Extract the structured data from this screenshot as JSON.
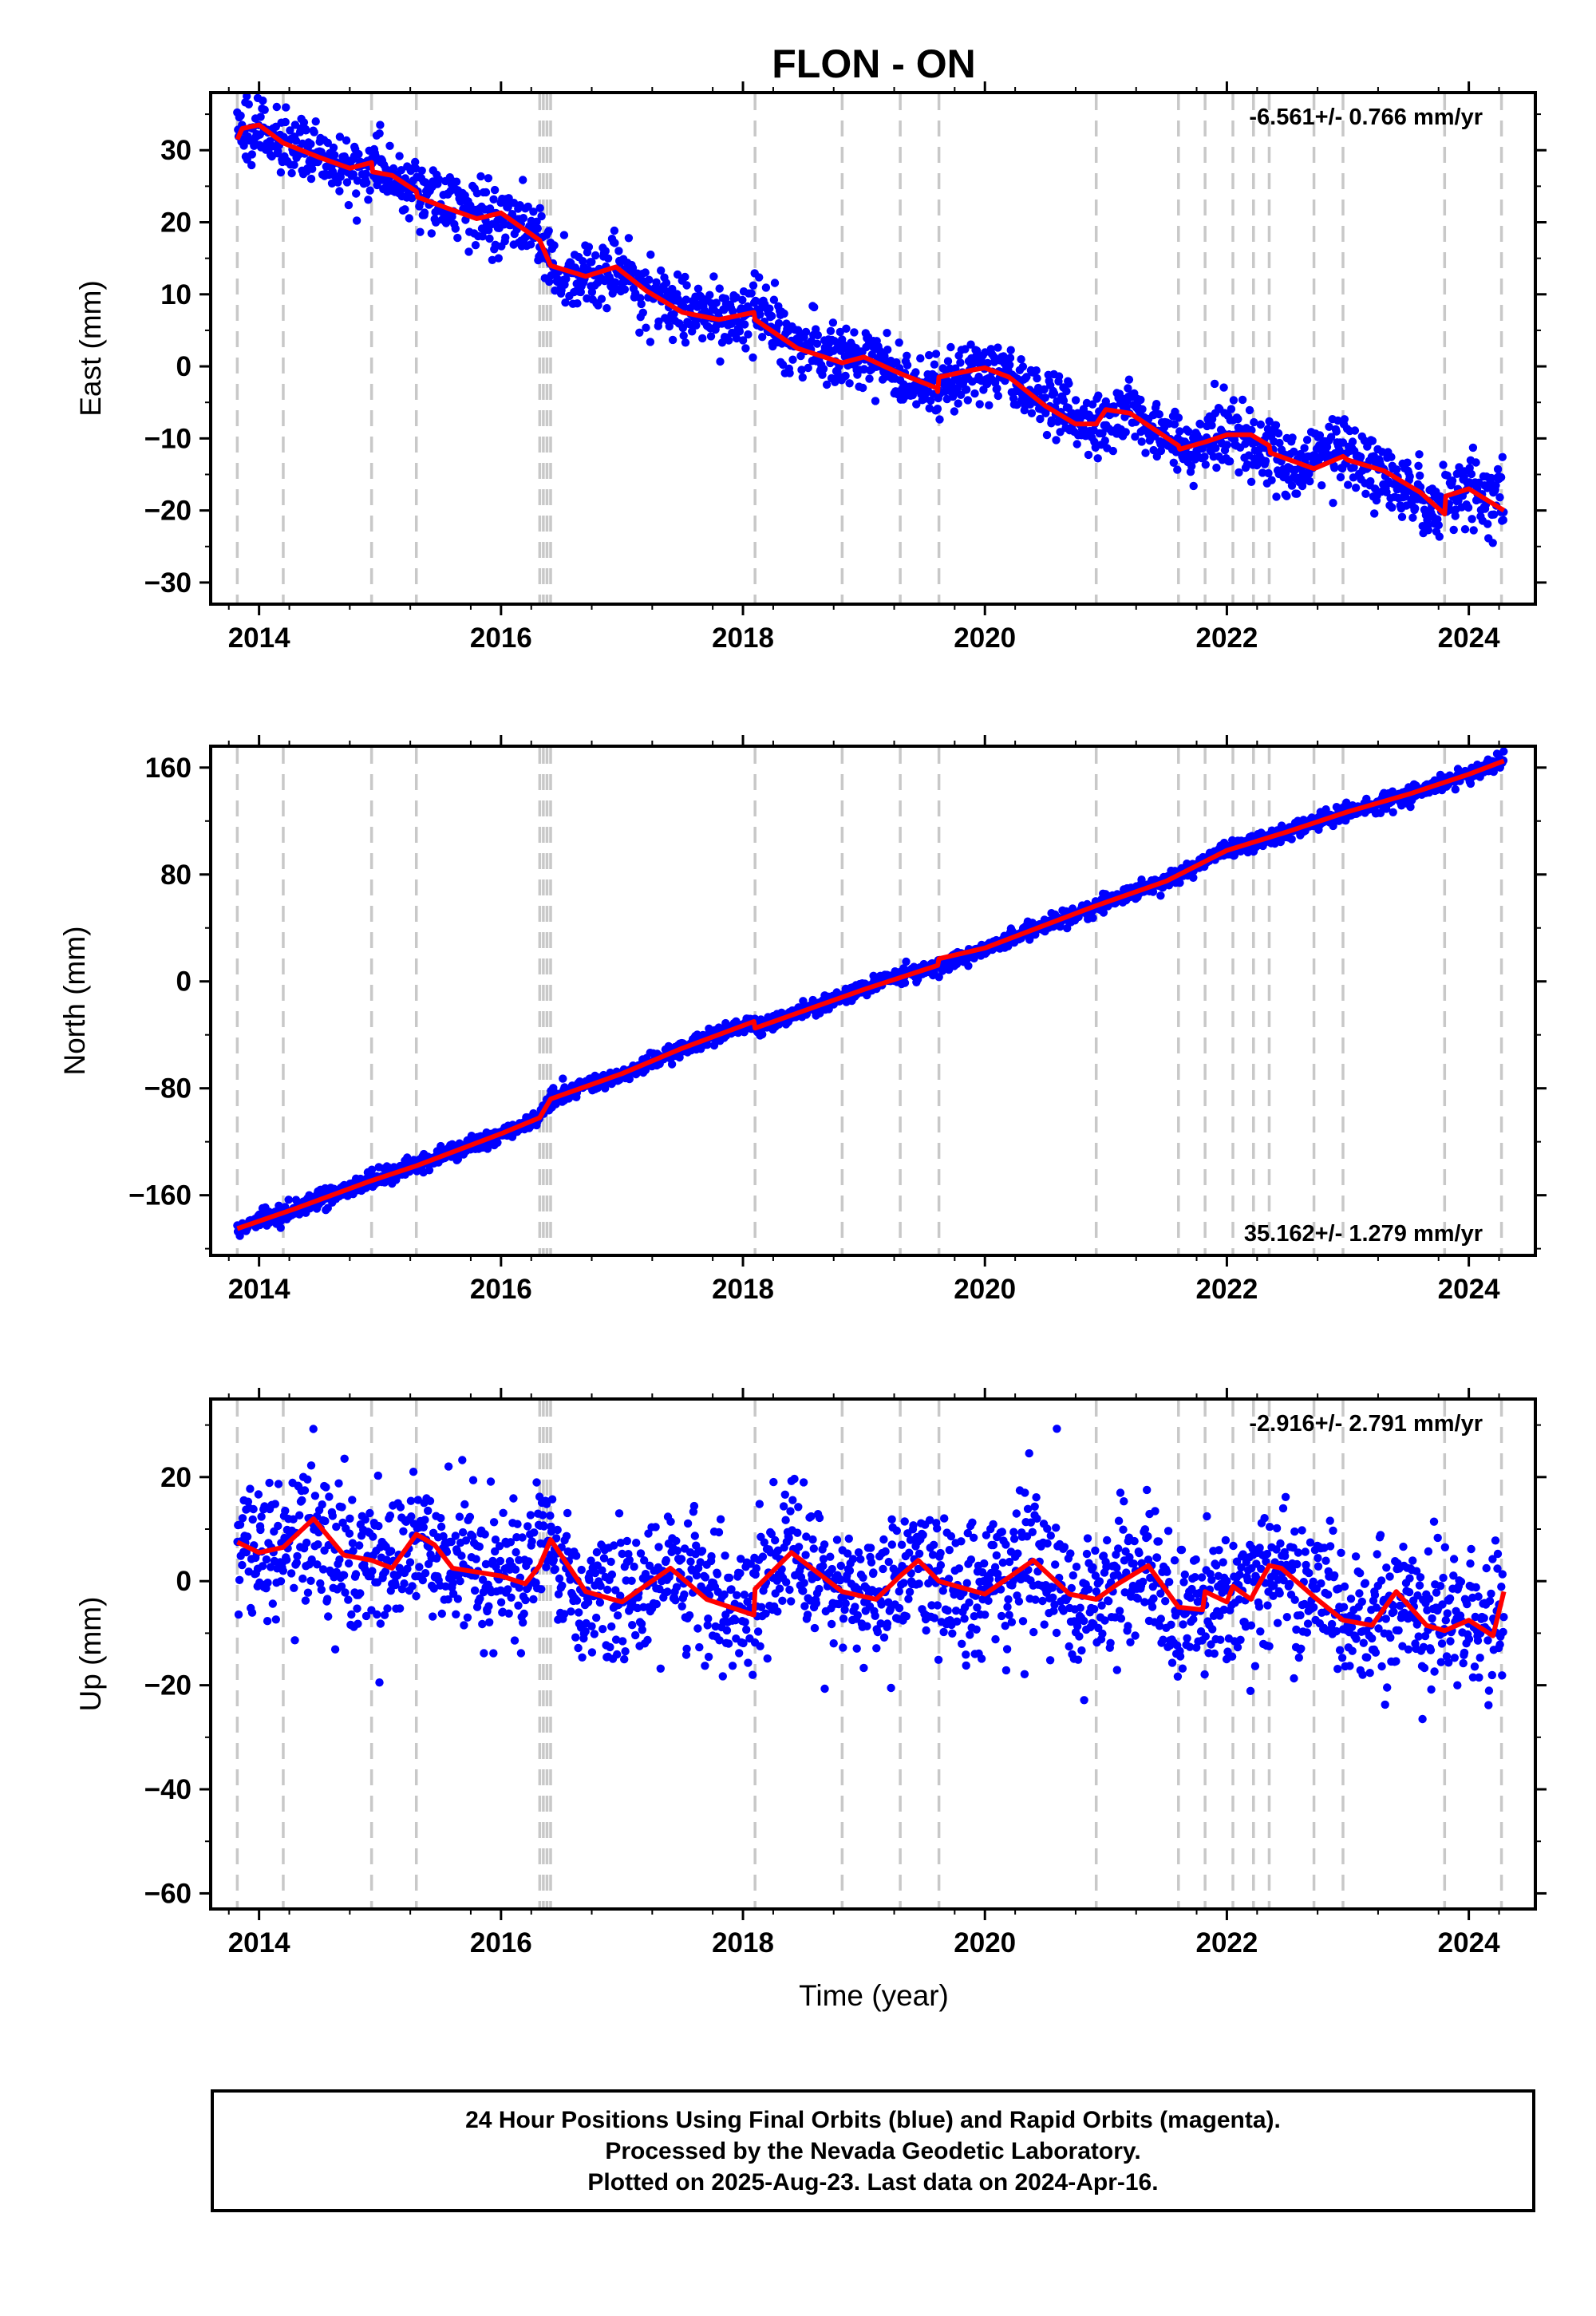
{
  "title": "FLON - ON",
  "colors": {
    "data": "#0000ff",
    "model": "#ff0000",
    "event_line": "#c8c8c8",
    "frame": "#000000"
  },
  "x_label": "Time (year)",
  "footer": {
    "line1": "24 Hour Positions Using Final Orbits (blue) and Rapid Orbits (magenta).",
    "line2": "Processed by the Nevada Geodetic Laboratory.",
    "line3": "Plotted on 2025-Aug-23. Last data on 2024-Apr-16."
  },
  "chart_data": [
    {
      "type": "scatter",
      "component": "east",
      "ylabel": "East (mm)",
      "rate_label": "-6.561+/- 0.766 mm/yr",
      "rate_position": "top-right",
      "xlim": [
        2013.6,
        2024.55
      ],
      "ylim": [
        -33,
        38
      ],
      "x_ticks": [
        2014,
        2016,
        2018,
        2020,
        2022,
        2024
      ],
      "y_ticks": [
        -30,
        -20,
        -10,
        0,
        10,
        20,
        30
      ],
      "event_lines": [
        2013.82,
        2014.2,
        2014.93,
        2015.3,
        2016.32,
        2016.35,
        2016.38,
        2016.41,
        2018.1,
        2018.82,
        2019.3,
        2019.62,
        2020.92,
        2021.6,
        2021.82,
        2022.05,
        2022.22,
        2022.35,
        2022.72,
        2022.96,
        2023.8,
        2024.27
      ],
      "data_span": [
        2013.82,
        2024.29
      ],
      "series": [
        {
          "name": "24 hour positions (final orbits)",
          "style": "points",
          "scatter_mm": 2.2,
          "outlier_mm": 6,
          "x": [
            2013.82,
            2014.0,
            2014.2,
            2014.5,
            2014.75,
            2014.95,
            2015.2,
            2015.5,
            2015.8,
            2016.0,
            2016.3,
            2016.45,
            2016.7,
            2016.95,
            2017.2,
            2017.5,
            2017.8,
            2018.1,
            2018.45,
            2018.8,
            2019.1,
            2019.35,
            2019.6,
            2019.9,
            2020.2,
            2020.55,
            2020.9,
            2021.2,
            2021.55,
            2021.8,
            2022.05,
            2022.3,
            2022.6,
            2022.9,
            2023.2,
            2023.5,
            2023.75,
            2024.0,
            2024.29
          ],
          "y": [
            32,
            33,
            31,
            29,
            27.5,
            28,
            25,
            23,
            21,
            21,
            18,
            13,
            12.5,
            14,
            11,
            8,
            6.5,
            7.5,
            3,
            0.5,
            1.5,
            -2,
            -3,
            -1,
            -1,
            -5,
            -8,
            -6,
            -11,
            -11,
            -9,
            -12,
            -14,
            -12,
            -14,
            -17,
            -20,
            -17.5,
            -19
          ]
        },
        {
          "name": "model fit",
          "style": "line",
          "x": [
            2013.82,
            2013.86,
            2014.0,
            2014.2,
            2014.5,
            2014.75,
            2014.93,
            2014.94,
            2015.1,
            2015.3,
            2015.31,
            2015.55,
            2015.8,
            2016.0,
            2016.15,
            2016.32,
            2016.41,
            2016.7,
            2016.95,
            2017.2,
            2017.5,
            2017.8,
            2018.09,
            2018.1,
            2018.45,
            2018.82,
            2019.0,
            2019.3,
            2019.6,
            2019.61,
            2019.62,
            2019.9,
            2020.0,
            2020.2,
            2020.5,
            2020.75,
            2020.92,
            2021.0,
            2021.2,
            2021.6,
            2021.61,
            2021.82,
            2022.0,
            2022.2,
            2022.35,
            2022.36,
            2022.72,
            2022.96,
            2023.0,
            2023.3,
            2023.6,
            2023.8,
            2023.81,
            2024.0,
            2024.29
          ],
          "y": [
            31.5,
            33,
            33.5,
            31,
            29,
            27.5,
            28.3,
            27,
            26.5,
            24.3,
            23.5,
            22,
            20.5,
            21.3,
            19.5,
            17.5,
            14,
            12.5,
            13.8,
            10.5,
            7.5,
            6.5,
            7.5,
            6.5,
            2.5,
            0.5,
            1.3,
            -1,
            -3,
            -3.5,
            -1.5,
            -0.5,
            -0.2,
            -1.5,
            -5.5,
            -8,
            -8,
            -6,
            -6.5,
            -11,
            -11.5,
            -10.5,
            -9.5,
            -9.5,
            -11,
            -12,
            -14.2,
            -12.5,
            -13,
            -14.5,
            -17.5,
            -20.5,
            -18,
            -17,
            -20
          ]
        }
      ]
    },
    {
      "type": "scatter",
      "component": "north",
      "ylabel": "North (mm)",
      "rate_label": "35.162+/- 1.279 mm/yr",
      "rate_position": "bottom-right",
      "xlim": [
        2013.6,
        2024.55
      ],
      "ylim": [
        -205,
        176
      ],
      "x_ticks": [
        2014,
        2016,
        2018,
        2020,
        2022,
        2024
      ],
      "y_ticks": [
        -160,
        -80,
        0,
        80,
        160
      ],
      "event_lines": [
        2013.82,
        2014.2,
        2014.93,
        2015.3,
        2016.32,
        2016.35,
        2016.38,
        2016.41,
        2018.1,
        2018.82,
        2019.3,
        2019.62,
        2020.92,
        2021.6,
        2021.82,
        2022.05,
        2022.22,
        2022.35,
        2022.72,
        2022.96,
        2023.8,
        2024.27
      ],
      "data_span": [
        2013.82,
        2024.29
      ],
      "series": [
        {
          "name": "24 hour positions (final orbits)",
          "style": "points",
          "scatter_mm": 3.0,
          "outlier_mm": 8,
          "x": [
            2013.82,
            2014.3,
            2014.9,
            2015.3,
            2016.0,
            2016.3,
            2016.4,
            2017.0,
            2017.5,
            2018.08,
            2018.12,
            2019.0,
            2019.6,
            2020.0,
            2020.9,
            2021.5,
            2022.0,
            2022.5,
            2023.0,
            2023.5,
            2024.0,
            2024.29
          ],
          "y": [
            -185,
            -170,
            -150,
            -138,
            -114,
            -104,
            -88,
            -69,
            -50,
            -30,
            -35,
            -5,
            12,
            25,
            56,
            75,
            98,
            112,
            127,
            140,
            155,
            165
          ]
        },
        {
          "name": "model fit",
          "style": "line",
          "x": [
            2013.82,
            2014.3,
            2014.9,
            2015.3,
            2016.0,
            2016.32,
            2016.41,
            2017.0,
            2017.5,
            2018.09,
            2018.1,
            2019.0,
            2019.61,
            2019.62,
            2020.0,
            2020.9,
            2021.5,
            2022.0,
            2022.5,
            2023.0,
            2023.5,
            2024.0,
            2024.29
          ],
          "y": [
            -185,
            -170,
            -150,
            -138,
            -114,
            -102,
            -88,
            -69,
            -50,
            -30,
            -35,
            -6,
            12,
            17,
            25,
            56,
            75,
            98,
            112,
            127,
            140,
            155,
            165
          ]
        }
      ]
    },
    {
      "type": "scatter",
      "component": "up",
      "ylabel": "Up (mm)",
      "rate_label": "-2.916+/- 2.791 mm/yr",
      "rate_position": "top-right",
      "xlim": [
        2013.6,
        2024.55
      ],
      "ylim": [
        -63,
        35
      ],
      "x_ticks": [
        2014,
        2016,
        2018,
        2020,
        2022,
        2024
      ],
      "y_ticks": [
        -60,
        -40,
        -20,
        0,
        20
      ],
      "event_lines": [
        2013.82,
        2014.2,
        2014.93,
        2015.3,
        2016.32,
        2016.35,
        2016.38,
        2016.41,
        2018.1,
        2018.82,
        2019.3,
        2019.62,
        2020.92,
        2021.6,
        2021.82,
        2022.05,
        2022.22,
        2022.35,
        2022.72,
        2022.96,
        2023.8,
        2024.27
      ],
      "data_span": [
        2013.82,
        2024.29
      ],
      "series": [
        {
          "name": "24 hour positions (final orbits)",
          "style": "points",
          "scatter_mm": 6.5,
          "outlier_mm": 22,
          "x": [
            2013.82,
            2014.0,
            2014.15,
            2014.4,
            2014.7,
            2014.95,
            2015.1,
            2015.35,
            2015.65,
            2016.0,
            2016.2,
            2016.35,
            2016.6,
            2017.0,
            2017.4,
            2017.7,
            2018.08,
            2018.12,
            2018.4,
            2018.8,
            2019.1,
            2019.4,
            2019.8,
            2020.1,
            2020.4,
            2020.7,
            2020.95,
            2021.3,
            2021.6,
            2021.8,
            2022.05,
            2022.3,
            2022.55,
            2022.75,
            2022.96,
            2023.2,
            2023.4,
            2023.65,
            2023.85,
            2024.1,
            2024.29
          ],
          "y": [
            7,
            6,
            5,
            12,
            4,
            4,
            3,
            9,
            3,
            1,
            0,
            8,
            -2,
            -4,
            3,
            -3,
            -7,
            -2,
            5,
            -2,
            -4,
            4,
            -3,
            -2,
            4,
            -3,
            -3,
            3,
            -5,
            -4,
            -4,
            3,
            -1,
            0,
            -8,
            -9,
            -2,
            -8,
            -8,
            -10,
            -2
          ]
        },
        {
          "name": "model fit",
          "style": "line",
          "x": [
            2013.82,
            2014.0,
            2014.2,
            2014.45,
            2014.7,
            2014.93,
            2015.1,
            2015.3,
            2015.45,
            2015.6,
            2016.0,
            2016.2,
            2016.32,
            2016.41,
            2016.7,
            2017.0,
            2017.4,
            2017.7,
            2018.09,
            2018.1,
            2018.4,
            2018.82,
            2019.1,
            2019.3,
            2019.45,
            2019.62,
            2020.0,
            2020.4,
            2020.7,
            2020.92,
            2021.1,
            2021.35,
            2021.6,
            2021.8,
            2021.82,
            2022.0,
            2022.05,
            2022.2,
            2022.22,
            2022.35,
            2022.45,
            2022.72,
            2022.96,
            2023.2,
            2023.4,
            2023.65,
            2023.8,
            2024.0,
            2024.2,
            2024.29
          ],
          "y": [
            7.5,
            5.5,
            6.5,
            12,
            5,
            4,
            2.5,
            9,
            7,
            2.5,
            1,
            -0.5,
            3,
            8,
            -2,
            -4,
            2.5,
            -3.5,
            -6.5,
            -1.5,
            5.5,
            -2,
            -3.5,
            1,
            4,
            0,
            -2.5,
            4,
            -2.5,
            -3.5,
            -0.5,
            3,
            -5,
            -5.5,
            -2,
            -4,
            -1,
            -3.5,
            -2.5,
            3,
            2.5,
            -3,
            -7.5,
            -8.5,
            -2,
            -8.5,
            -9.5,
            -7.5,
            -10.5,
            -2
          ]
        }
      ]
    }
  ]
}
